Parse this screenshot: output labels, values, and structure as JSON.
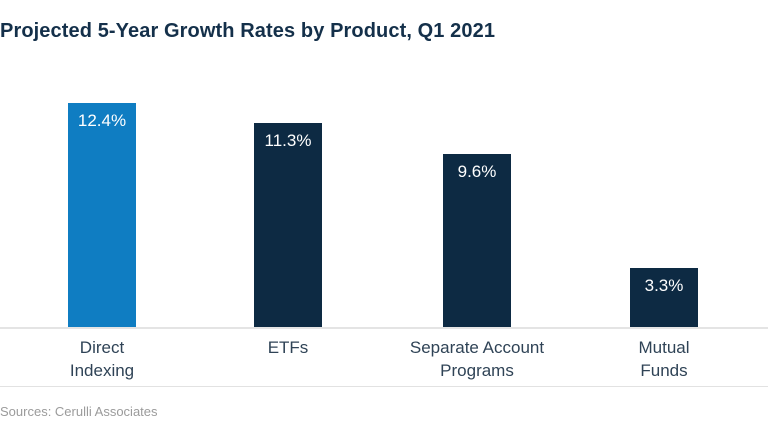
{
  "title": "Projected 5-Year Growth Rates by Product, Q1 2021",
  "source": "Sources: Cerulli Associates",
  "colors": {
    "highlight_bar": "#0f7dc2",
    "primary_bar": "#0d2a43",
    "title_text": "#14304a",
    "category_text": "#2f4356",
    "axis_line": "#e4e4e4",
    "source_text": "#9b9b9b",
    "value_label_text": "#ffffff"
  },
  "chart_data": {
    "type": "bar",
    "title": "Projected 5-Year Growth Rates by Product, Q1 2021",
    "categories": [
      "Direct\nIndexing",
      "ETFs",
      "Separate Account\nPrograms",
      "Mutual\nFunds"
    ],
    "values": [
      12.4,
      11.3,
      9.6,
      3.3
    ],
    "value_labels": [
      "12.4%",
      "11.3%",
      "9.6%",
      "3.3%"
    ],
    "bar_colors": [
      "#0f7dc2",
      "#0d2a43",
      "#0d2a43",
      "#0d2a43"
    ],
    "xlabel": "",
    "ylabel": "",
    "ylim": [
      0,
      13.8
    ],
    "grid": false,
    "legend": false,
    "value_label_position": "inside-top",
    "source": "Sources: Cerulli Associates"
  }
}
